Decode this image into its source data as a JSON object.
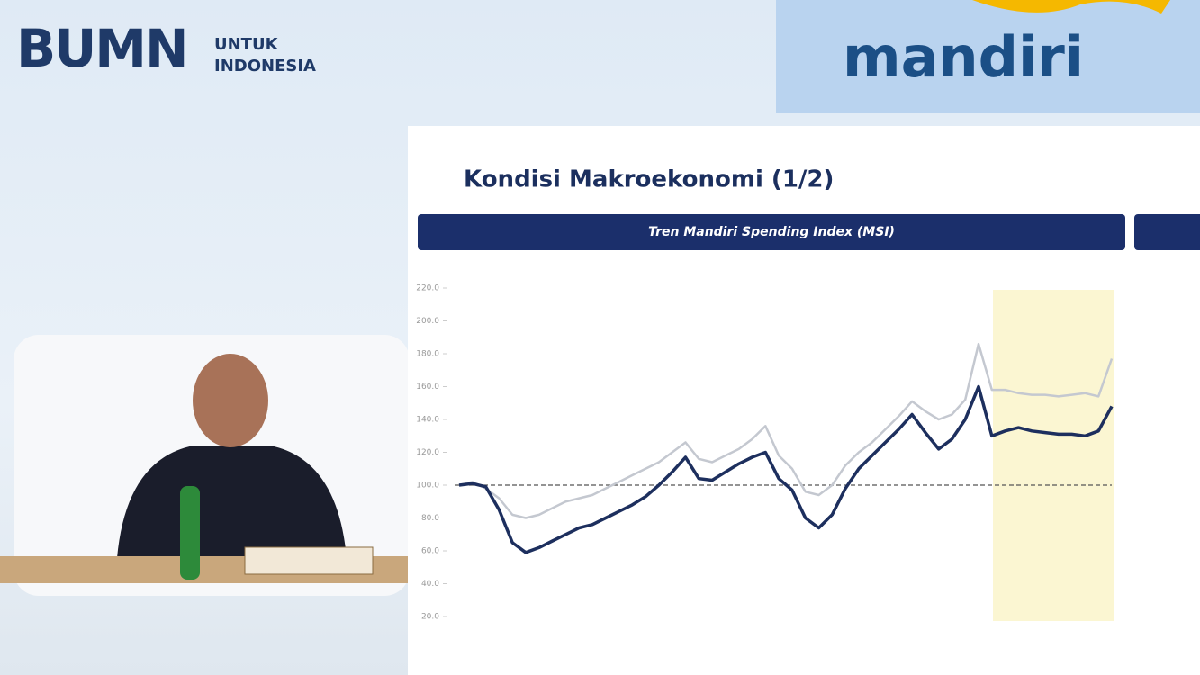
{
  "header": {
    "logo": "BUMN",
    "tagline_1": "UNTUK",
    "tagline_2": "INDONESIA",
    "brand": "mandiri"
  },
  "slide": {
    "title": "Kondisi Makroekonomi (1/2)"
  },
  "chart_data": {
    "type": "line",
    "title": "Tren Mandiri Spending Index (MSI)",
    "categories": [
      null,
      null,
      null,
      null,
      null,
      null,
      null,
      null,
      null,
      null,
      null,
      null,
      null,
      null,
      null,
      null,
      null,
      null,
      null,
      null,
      null,
      null,
      null,
      null,
      null,
      null,
      null,
      null,
      null,
      null,
      null,
      null,
      null,
      null,
      null,
      null,
      null,
      null,
      null,
      null,
      null,
      null,
      null,
      null,
      null,
      null,
      null,
      null,
      null,
      null
    ],
    "series": [
      {
        "name": null,
        "color": "#c4c8d0",
        "values": [
          100,
          102,
          98,
          92,
          82,
          80,
          82,
          86,
          90,
          92,
          94,
          98,
          102,
          106,
          110,
          114,
          120,
          126,
          116,
          114,
          118,
          122,
          128,
          136,
          118,
          110,
          96,
          94,
          100,
          112,
          120,
          126,
          134,
          142,
          151,
          145,
          140,
          143,
          152,
          186,
          158,
          158,
          156,
          155,
          155,
          154,
          155,
          156,
          154,
          177
        ]
      },
      {
        "name": null,
        "color": "#1d2f5e",
        "values": [
          100,
          101,
          99,
          85,
          65,
          59,
          62,
          66,
          70,
          74,
          76,
          80,
          84,
          88,
          93,
          100,
          108,
          117,
          104,
          103,
          108,
          113,
          117,
          120,
          104,
          97,
          80,
          74,
          82,
          98,
          110,
          118,
          126,
          134,
          143,
          132,
          122,
          128,
          140,
          160,
          130,
          133,
          135,
          133,
          132,
          131,
          131,
          130,
          133,
          148
        ]
      }
    ],
    "ylim": [
      20,
      220
    ],
    "yticks": [
      {
        "value": 20,
        "label": "20.0"
      },
      {
        "value": 40,
        "label": "40.0"
      },
      {
        "value": 60,
        "label": "60.0"
      },
      {
        "value": 80,
        "label": "80.0"
      },
      {
        "value": 100,
        "label": "100.0"
      },
      {
        "value": 120,
        "label": "120.0"
      },
      {
        "value": 140,
        "label": "140.0"
      },
      {
        "value": 160,
        "label": "160.0"
      },
      {
        "value": 180,
        "label": "180.0"
      },
      {
        "value": 200,
        "label": "200.0"
      },
      {
        "value": 220,
        "label": "220.0"
      }
    ],
    "reference_line": 100
  }
}
